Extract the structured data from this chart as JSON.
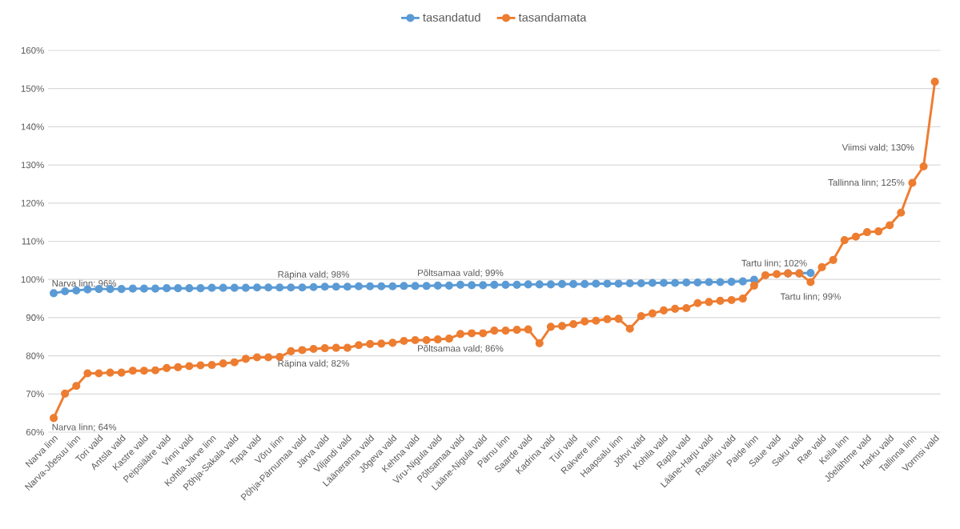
{
  "chart_data": {
    "type": "line",
    "categories": [
      "Narva linn",
      null,
      "Narva-Jõesuu linn",
      null,
      "Tori vald",
      null,
      "Antsla vald",
      null,
      "Kastre vald",
      null,
      "Peipsiääre vald",
      null,
      "Vinni vald",
      null,
      "Kohtla-Järve linn",
      null,
      "Põhja-Sakala vald",
      null,
      "Tapa vald",
      null,
      "Võru linn",
      null,
      "Põhja-Pärnumaa vald",
      null,
      "Järva vald",
      null,
      "Viljandi vald",
      null,
      "Lääneranna vald",
      null,
      "Jõgeva vald",
      null,
      "Kehtna vald",
      null,
      "Viru-Nigula vald",
      null,
      "Põltsamaa vald",
      null,
      "Lääne-Nigula vald",
      null,
      "Pärnu linn",
      null,
      "Saarde vald",
      null,
      "Kadrina vald",
      null,
      "Türi vald",
      null,
      "Rakvere linn",
      null,
      "Haapsalu linn",
      null,
      "Jõhvi vald",
      null,
      "Kohila vald",
      null,
      "Rapla vald",
      null,
      "Lääne-Harju vald",
      null,
      "Raasiku vald",
      null,
      "Paide linn",
      null,
      "Saue vald",
      null,
      "Saku vald",
      null,
      "Rae vald",
      null,
      "Keila linn",
      null,
      "Jõelähtme vald",
      null,
      "Harku vald",
      null,
      "Tallinna linn",
      null,
      "Vormsi vald"
    ],
    "series": [
      {
        "name": "tasandatud",
        "color": "#5b9bd5",
        "values": [
          96.4,
          96.9,
          97.1,
          97.4,
          97.5,
          97.5,
          97.5,
          97.6,
          97.6,
          97.6,
          97.7,
          97.7,
          97.7,
          97.7,
          97.8,
          97.8,
          97.8,
          97.8,
          97.9,
          97.9,
          97.9,
          97.9,
          97.9,
          98.0,
          98.1,
          98.1,
          98.1,
          98.2,
          98.2,
          98.2,
          98.2,
          98.3,
          98.3,
          98.3,
          98.4,
          98.4,
          98.6,
          98.5,
          98.5,
          98.6,
          98.6,
          98.6,
          98.7,
          98.7,
          98.7,
          98.8,
          98.8,
          98.8,
          98.9,
          98.9,
          98.9,
          99.0,
          99.0,
          99.1,
          99.1,
          99.1,
          99.2,
          99.2,
          99.3,
          99.3,
          99.4,
          99.5,
          99.9,
          null,
          null,
          101.6,
          101.6,
          101.7,
          null,
          null,
          null,
          null,
          null,
          null,
          null,
          null,
          null,
          null,
          null
        ]
      },
      {
        "name": "tasandamata",
        "color": "#ed7d31",
        "values": [
          63.7,
          70.1,
          72.1,
          75.4,
          75.4,
          75.6,
          75.6,
          76.1,
          76.1,
          76.2,
          76.8,
          77.0,
          77.3,
          77.5,
          77.6,
          78.0,
          78.3,
          79.2,
          79.6,
          79.6,
          79.7,
          81.2,
          81.5,
          81.8,
          82.0,
          82.1,
          82.1,
          82.8,
          83.1,
          83.2,
          83.4,
          83.9,
          84.1,
          84.1,
          84.3,
          84.5,
          85.7,
          85.9,
          85.9,
          86.6,
          86.6,
          86.8,
          86.9,
          83.3,
          87.6,
          87.8,
          88.3,
          89.0,
          89.2,
          89.6,
          89.7,
          87.1,
          90.4,
          91.1,
          91.9,
          92.3,
          92.5,
          93.8,
          94.1,
          94.4,
          94.6,
          95.0,
          98.4,
          101.1,
          101.4,
          101.6,
          101.6,
          99.3,
          103.2,
          105.1,
          110.3,
          111.2,
          112.4,
          112.6,
          114.2,
          117.5,
          125.3,
          129.6,
          151.8
        ]
      }
    ],
    "ylim": [
      60,
      160
    ],
    "yticks": [
      {
        "value": 60,
        "label": "60%"
      },
      {
        "value": 70,
        "label": "70%"
      },
      {
        "value": 80,
        "label": "80%"
      },
      {
        "value": 90,
        "label": "90%"
      },
      {
        "value": 100,
        "label": "100%"
      },
      {
        "value": 110,
        "label": "110%"
      },
      {
        "value": 120,
        "label": "120%"
      },
      {
        "value": 130,
        "label": "130%"
      },
      {
        "value": 140,
        "label": "140%"
      },
      {
        "value": 150,
        "label": "150%"
      },
      {
        "value": 160,
        "label": "160%"
      }
    ],
    "grid": "y",
    "legend": "top",
    "marker": "circle",
    "line_style": "solid",
    "annotations": [
      {
        "text": "Narva linn; 96%",
        "x": "Narva linn",
        "y": 96.4
      },
      {
        "text": "Narva linn; 64%",
        "x": "Narva linn",
        "y": 63.7
      },
      {
        "text": "Räpina vald; 98%",
        "y": 98.0
      },
      {
        "text": "Räpina vald; 82%",
        "y": 81.8
      },
      {
        "text": "Põltsamaa vald; 99%",
        "x": "Põltsamaa vald",
        "y": 98.6
      },
      {
        "text": "Põltsamaa vald; 86%",
        "x": "Põltsamaa vald",
        "y": 85.7
      },
      {
        "text": "Tartu linn; 102%",
        "y": 101.7
      },
      {
        "text": "Tartu linn; 99%",
        "y": 99.3
      },
      "Viimsi vald; 130%",
      {
        "text": "Tallinna linn; 125%",
        "x": "Tallinna linn",
        "y": 125.3
      }
    ]
  }
}
